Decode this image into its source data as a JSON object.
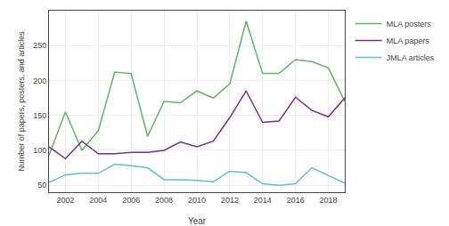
{
  "chart_data": {
    "type": "line",
    "x": [
      2001,
      2002,
      2003,
      2004,
      2005,
      2006,
      2007,
      2008,
      2009,
      2010,
      2011,
      2012,
      2013,
      2014,
      2015,
      2016,
      2017,
      2018,
      2019
    ],
    "series": [
      {
        "name": "MLA posters",
        "color": "#5cb85c",
        "values": [
          93,
          155,
          100,
          128,
          212,
          210,
          120,
          170,
          168,
          185,
          175,
          195,
          285,
          210,
          210,
          230,
          227,
          218,
          170
        ]
      },
      {
        "name": "MLA papers",
        "color": "#7b2d8b",
        "values": [
          105,
          88,
          113,
          95,
          95,
          97,
          97,
          100,
          112,
          105,
          113,
          147,
          185,
          140,
          142,
          176,
          157,
          148,
          175
        ]
      },
      {
        "name": "JMLA articles",
        "color": "#5bc0de",
        "values": [
          54,
          65,
          67,
          67,
          80,
          78,
          75,
          58,
          58,
          57,
          55,
          70,
          68,
          52,
          50,
          52,
          75,
          64,
          53
        ]
      }
    ],
    "xlabel": "Year",
    "ylabel": "Number of papers, posters, and articles",
    "xlim": [
      2001,
      2019
    ],
    "xticks": [
      2002,
      2004,
      2006,
      2008,
      2010,
      2012,
      2014,
      2016,
      2018
    ],
    "ylim": [
      40,
      300
    ],
    "yticks": [
      50,
      100,
      150,
      200,
      250
    ],
    "grid": true,
    "legend": "right"
  }
}
